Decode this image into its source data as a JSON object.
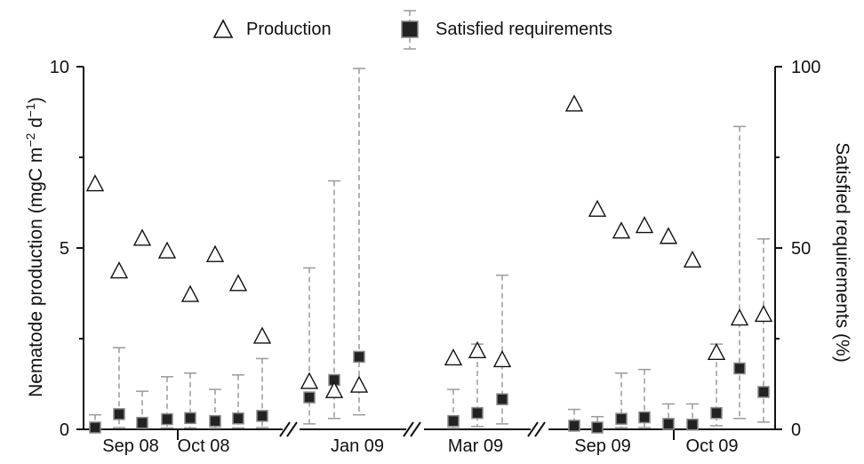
{
  "chart_data": {
    "type": "scatter",
    "legend": {
      "placement": "top-center",
      "items": [
        {
          "label": "Production",
          "marker": "triangle-open"
        },
        {
          "label": "Satisfied requirements",
          "marker": "square-filled"
        }
      ]
    },
    "ylabel_left_main": "Nematode production (mgC m",
    "ylabel_left_sup1": "−2",
    "ylabel_left_mid": " d",
    "ylabel_left_sup2": "−1",
    "ylabel_left_end": ")",
    "ylabel_right": "Satisfied requirements (%)",
    "ylim_left": [
      0,
      10
    ],
    "ylim_right": [
      0,
      100
    ],
    "yticks_left": [
      "0",
      "5",
      "10"
    ],
    "yticks_right": [
      "0",
      "50",
      "100"
    ],
    "axis_breaks": true,
    "colors": {
      "axis": "#111111",
      "square": "#222222",
      "error": "#9a9a9a"
    },
    "groups": [
      {
        "label": "Sep 08",
        "section": 1
      },
      {
        "label": "Oct 08",
        "section": 1
      },
      {
        "label": "Jan 09",
        "section": 2
      },
      {
        "label": "Mar 09",
        "section": 3
      },
      {
        "label": "Sep 09",
        "section": 4
      },
      {
        "label": "Oct 09",
        "section": 4
      }
    ],
    "series": [
      {
        "name": "Production",
        "axis": "left",
        "values": [
          6.75,
          4.35,
          5.25,
          4.9,
          3.7,
          4.8,
          4.0,
          2.55,
          1.3,
          1.05,
          1.2,
          1.95,
          2.15,
          1.9,
          8.95,
          6.05,
          5.45,
          5.6,
          5.3,
          4.65,
          2.1,
          3.05,
          3.15
        ]
      },
      {
        "name": "Satisfied requirements",
        "axis": "right",
        "values": [
          0.5,
          4.2,
          1.8,
          2.8,
          3.1,
          2.3,
          3.0,
          3.7,
          8.8,
          13.6,
          20.0,
          2.3,
          4.5,
          8.3,
          1.0,
          0.5,
          2.9,
          3.3,
          1.5,
          1.3,
          4.5,
          16.8,
          10.3
        ],
        "error_high": [
          4.0,
          22.5,
          10.5,
          14.5,
          15.5,
          11.0,
          15.0,
          19.5,
          44.5,
          68.5,
          99.5,
          11.0,
          23.5,
          42.5,
          5.5,
          3.5,
          15.5,
          16.5,
          7.0,
          7.0,
          23.5,
          83.5,
          52.5
        ],
        "error_low": [
          0.2,
          0.5,
          0.3,
          0.4,
          0.4,
          0.3,
          0.4,
          0.5,
          1.5,
          3.0,
          4.0,
          0.3,
          0.8,
          1.5,
          0.2,
          0.2,
          0.5,
          0.5,
          0.2,
          0.2,
          1.0,
          3.0,
          2.0
        ]
      }
    ]
  }
}
